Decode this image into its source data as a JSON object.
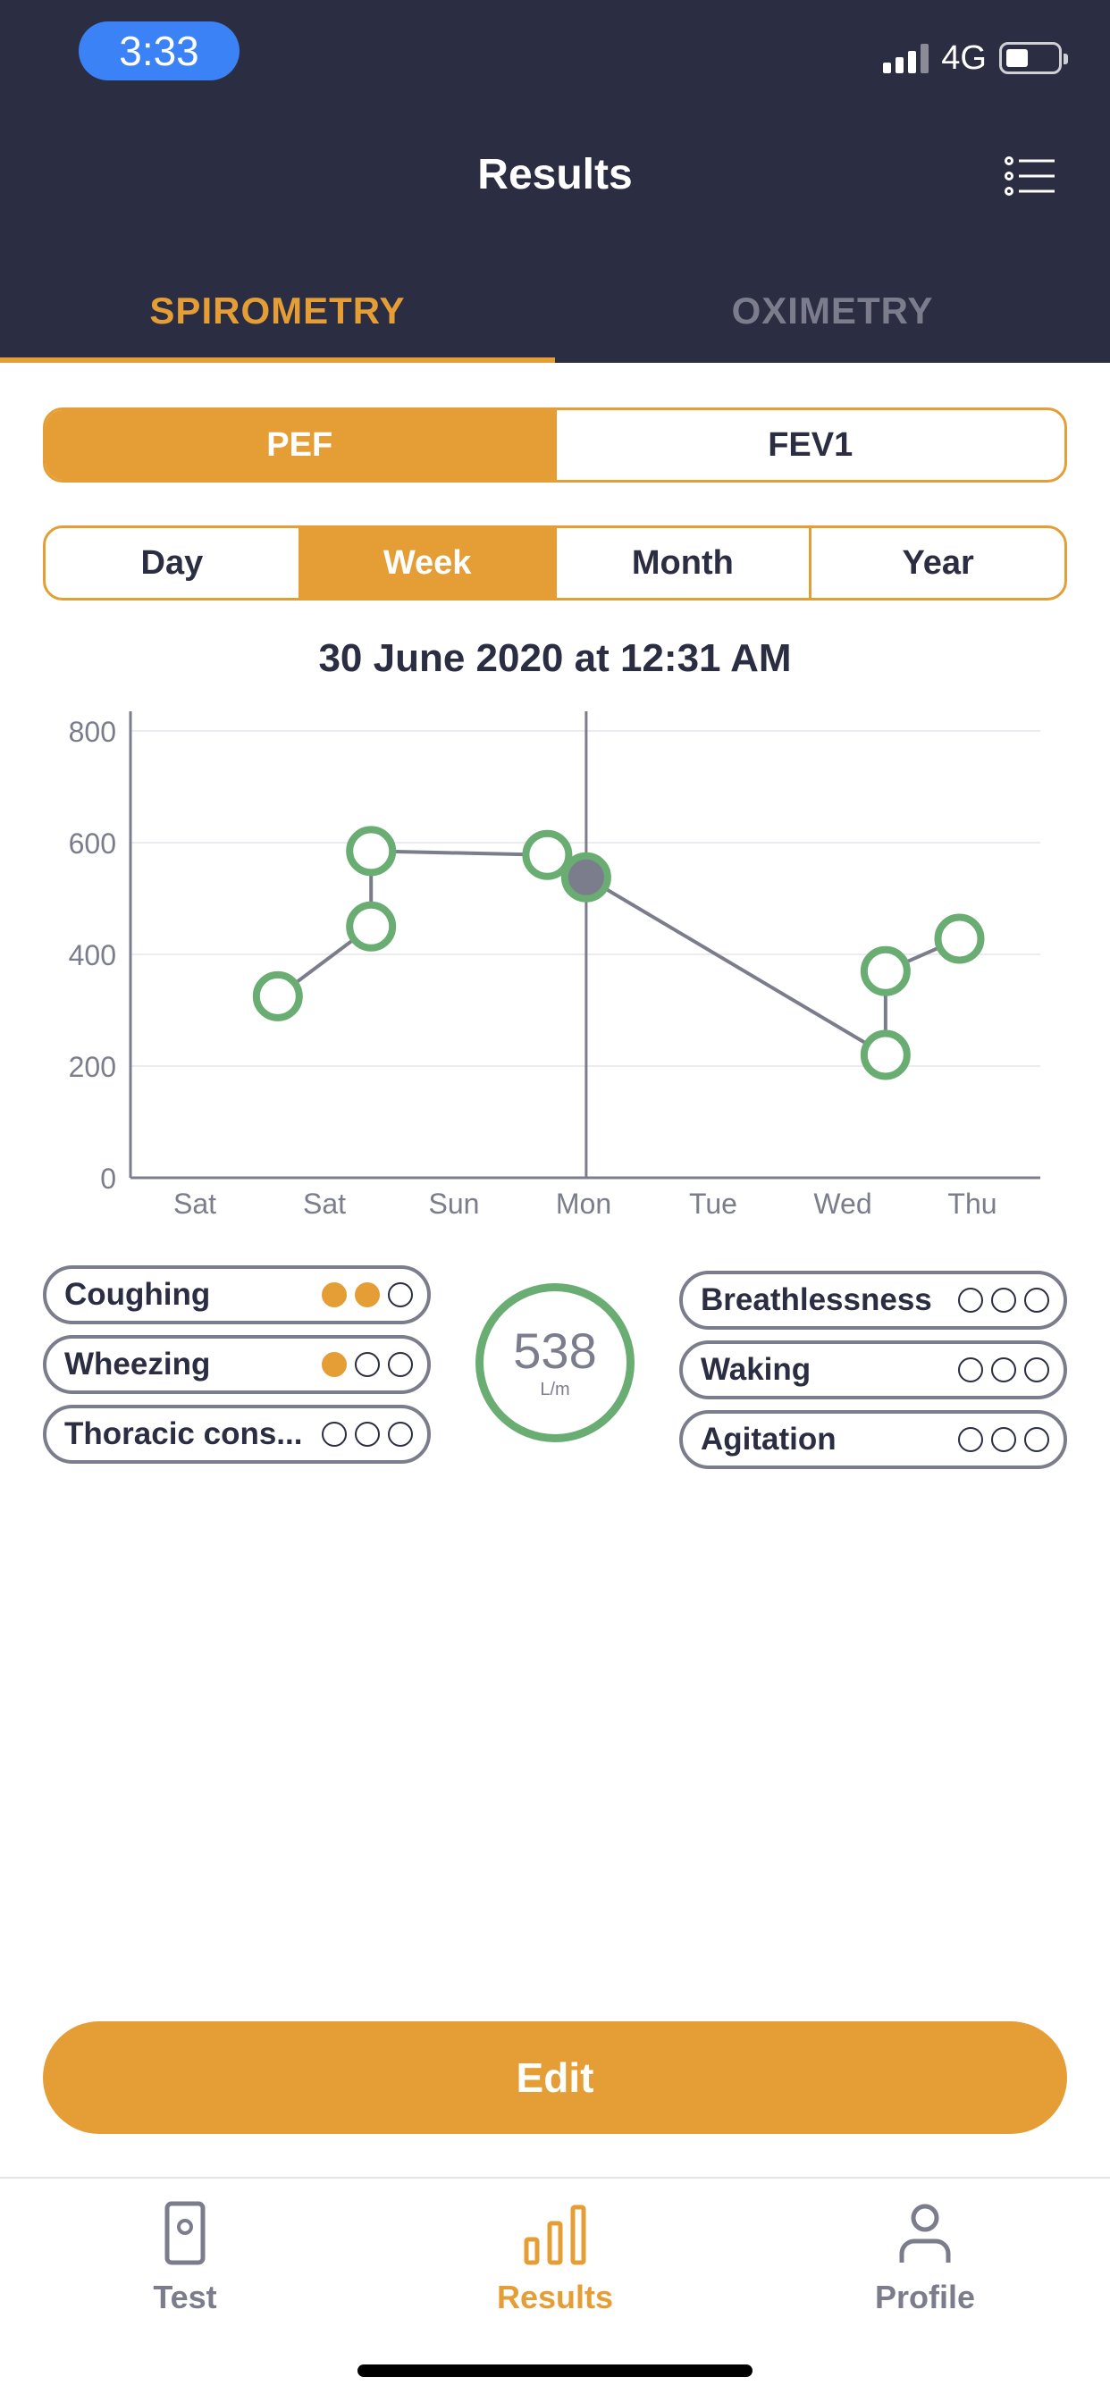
{
  "status_bar": {
    "time": "3:33",
    "network": "4G"
  },
  "header": {
    "title": "Results",
    "list_icon": "list-icon"
  },
  "tabs": [
    {
      "label": "SPIROMETRY",
      "active": true
    },
    {
      "label": "OXIMETRY",
      "active": false
    }
  ],
  "metric_toggle": {
    "options": [
      "PEF",
      "FEV1"
    ],
    "selected": "PEF"
  },
  "period_toggle": {
    "options": [
      "Day",
      "Week",
      "Month",
      "Year"
    ],
    "selected": "Week"
  },
  "chart_heading": "30 June 2020 at 12:31 AM",
  "chart_data": {
    "type": "line",
    "x_categories": [
      "Sat",
      "Sat",
      "Sun",
      "Mon",
      "Tue",
      "Wed",
      "Thu"
    ],
    "y_ticks": [
      0,
      200,
      400,
      600,
      800
    ],
    "ylim": [
      0,
      800
    ],
    "points": [
      {
        "x": 0.64,
        "y": 325
      },
      {
        "x": 1.36,
        "y": 450
      },
      {
        "x": 1.36,
        "y": 585
      },
      {
        "x": 2.72,
        "y": 578
      },
      {
        "x": 3.02,
        "y": 538,
        "selected": true
      },
      {
        "x": 5.33,
        "y": 220
      },
      {
        "x": 5.33,
        "y": 370
      },
      {
        "x": 5.9,
        "y": 428
      }
    ],
    "selected_x": 3.02,
    "grid": true,
    "colors": {
      "point": "#6aad73",
      "line": "#7b7d8c",
      "selected_fill": "#7b7d8c"
    }
  },
  "symptoms_left": [
    {
      "label": "Coughing",
      "level": 2
    },
    {
      "label": "Wheezing",
      "level": 1
    },
    {
      "label": "Thoracic cons...",
      "level": 0
    }
  ],
  "symptoms_right": [
    {
      "label": "Breathlessness",
      "level": 0
    },
    {
      "label": "Waking",
      "level": 0
    },
    {
      "label": "Agitation",
      "level": 0
    }
  ],
  "gauge": {
    "value": "538",
    "unit": "L/m"
  },
  "edit_label": "Edit",
  "nav": [
    {
      "label": "Test",
      "icon": "device-icon",
      "active": false
    },
    {
      "label": "Results",
      "icon": "bar-chart-icon",
      "active": true
    },
    {
      "label": "Profile",
      "icon": "person-icon",
      "active": false
    }
  ],
  "colors": {
    "navy": "#2b2d42",
    "accent": "#e59e36",
    "green": "#6aad73",
    "grey": "#7b7d8c"
  }
}
